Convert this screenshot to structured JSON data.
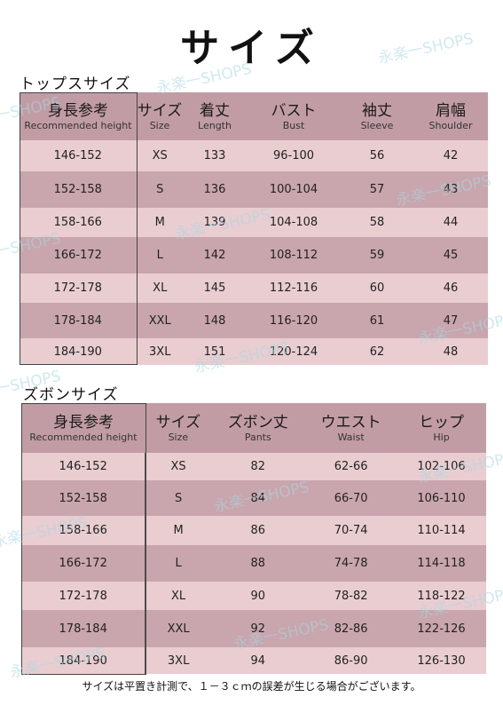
{
  "title": "サイズ",
  "tops": {
    "label": "トップスサイズ",
    "headers": [
      {
        "ja": "身長参考",
        "en": "Recommended height"
      },
      {
        "ja": "サイズ",
        "en": "Size"
      },
      {
        "ja": "着丈",
        "en": "Length"
      },
      {
        "ja": "バスト",
        "en": "Bust"
      },
      {
        "ja": "袖丈",
        "en": "Sleeve"
      },
      {
        "ja": "肩幅",
        "en": "Shoulder"
      }
    ],
    "rows": [
      [
        "146-152",
        "XS",
        "133",
        "96-100",
        "56",
        "42"
      ],
      [
        "152-158",
        "S",
        "136",
        "100-104",
        "57",
        "43"
      ],
      [
        "158-166",
        "M",
        "139",
        "104-108",
        "58",
        "44"
      ],
      [
        "166-172",
        "L",
        "142",
        "108-112",
        "59",
        "45"
      ],
      [
        "172-178",
        "XL",
        "145",
        "112-116",
        "60",
        "46"
      ],
      [
        "178-184",
        "XXL",
        "148",
        "116-120",
        "61",
        "47"
      ],
      [
        "184-190",
        "3XL",
        "151",
        "120-124",
        "62",
        "48"
      ]
    ]
  },
  "pants": {
    "label": "ズボンサイズ",
    "headers": [
      {
        "ja": "身長参考",
        "en": "Recommended height"
      },
      {
        "ja": "サイズ",
        "en": "Size"
      },
      {
        "ja": "ズボン丈",
        "en": "Pants"
      },
      {
        "ja": "ウエスト",
        "en": "Waist"
      },
      {
        "ja": "ヒップ",
        "en": "Hip"
      }
    ],
    "rows": [
      [
        "146-152",
        "XS",
        "82",
        "62-66",
        "102-106"
      ],
      [
        "152-158",
        "S",
        "84",
        "66-70",
        "106-110"
      ],
      [
        "158-166",
        "M",
        "86",
        "70-74",
        "110-114"
      ],
      [
        "166-172",
        "L",
        "88",
        "74-78",
        "114-118"
      ],
      [
        "172-178",
        "XL",
        "90",
        "78-82",
        "118-122"
      ],
      [
        "178-184",
        "XXL",
        "92",
        "82-86",
        "122-126"
      ],
      [
        "184-190",
        "3XL",
        "94",
        "86-90",
        "126-130"
      ]
    ]
  },
  "note": "サイズは平置き計測で、１－３ｃｍの誤差が生じる場合がございます。",
  "watermark": "永楽一SHOPS",
  "colors": {
    "header_bg": "#c29ca4",
    "row_light": "#e9cdd1",
    "row_dark": "#c9a5ad",
    "watermark": "#aad7e1"
  }
}
